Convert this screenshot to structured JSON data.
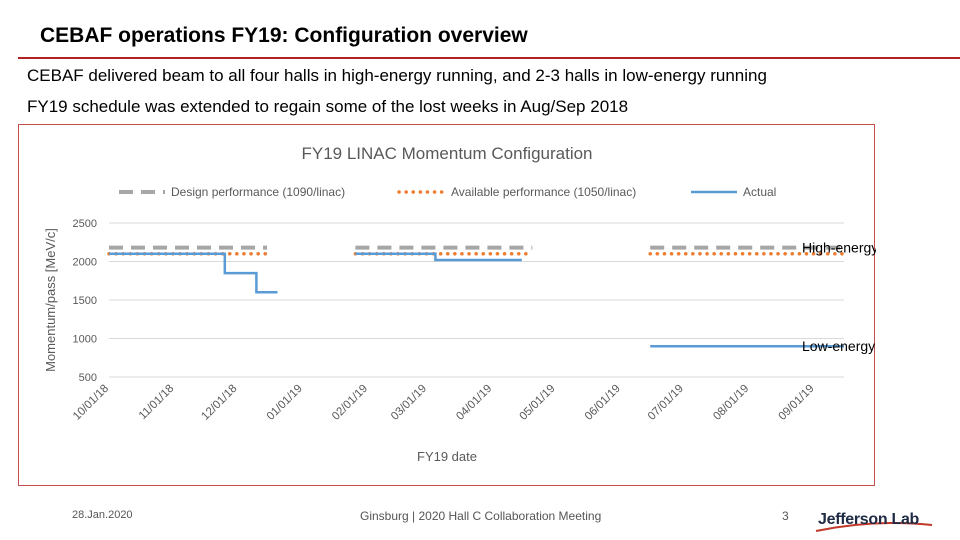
{
  "slide": {
    "title": "CEBAF operations FY19: Configuration overview",
    "bullets": [
      "CEBAF delivered beam to all four halls in high-energy running, and 2-3 halls in low-energy running",
      "FY19 schedule was extended to regain some of the lost weeks in Aug/Sep 2018"
    ],
    "footer": {
      "date": "28.Jan.2020",
      "center": "Ginsburg | 2020 Hall C Collaboration Meeting",
      "page": "3",
      "logo": "Jefferson Lab"
    }
  },
  "chart_data": {
    "type": "line",
    "title": "FY19 LINAC Momentum Configuration",
    "xlabel": "FY19 date",
    "ylabel": "Momentum/pass [MeV/c]",
    "ylim": [
      500,
      2500
    ],
    "yticks": [
      500,
      1000,
      1500,
      2000,
      2500
    ],
    "xlim": [
      "2018-10-01",
      "2019-09-15"
    ],
    "xticks": [
      "10/01/18",
      "11/01/18",
      "12/01/18",
      "01/01/19",
      "02/01/19",
      "03/01/19",
      "04/01/19",
      "05/01/19",
      "06/01/19",
      "07/01/19",
      "08/01/19",
      "09/01/19"
    ],
    "xtick_dates": [
      "2018-10-01",
      "2018-11-01",
      "2018-12-01",
      "2019-01-01",
      "2019-02-01",
      "2019-03-01",
      "2019-04-01",
      "2019-05-01",
      "2019-06-01",
      "2019-07-01",
      "2019-08-01",
      "2019-09-01"
    ],
    "grid": "horizontal",
    "legend_position": "top",
    "series": [
      {
        "name": "Design performance (1090/linac)",
        "style": "dashed",
        "color": "#a6a6a6",
        "segments": [
          [
            [
              "2018-10-01",
              2180
            ],
            [
              "2018-12-15",
              2180
            ]
          ],
          [
            [
              "2019-01-26",
              2180
            ],
            [
              "2019-04-20",
              2180
            ]
          ],
          [
            [
              "2019-06-15",
              2180
            ],
            [
              "2019-09-15",
              2180
            ]
          ]
        ]
      },
      {
        "name": "Available performance (1050/linac)",
        "style": "dotted",
        "color": "#ed7d31",
        "segments": [
          [
            [
              "2018-10-01",
              2100
            ],
            [
              "2018-12-15",
              2100
            ]
          ],
          [
            [
              "2019-01-26",
              2100
            ],
            [
              "2019-04-20",
              2100
            ]
          ],
          [
            [
              "2019-06-15",
              2100
            ],
            [
              "2019-09-15",
              2100
            ]
          ]
        ]
      },
      {
        "name": "Actual",
        "style": "solid",
        "color": "#5b9bd5",
        "segments": [
          [
            [
              "2018-10-01",
              2100
            ],
            [
              "2018-11-25",
              2100
            ],
            [
              "2018-11-25",
              1850
            ],
            [
              "2018-12-10",
              1850
            ],
            [
              "2018-12-10",
              1600
            ],
            [
              "2018-12-20",
              1600
            ]
          ],
          [
            [
              "2019-01-26",
              2100
            ],
            [
              "2019-03-05",
              2100
            ],
            [
              "2019-03-05",
              2020
            ],
            [
              "2019-04-15",
              2020
            ]
          ],
          [
            [
              "2019-06-15",
              900
            ],
            [
              "2019-09-15",
              900
            ]
          ]
        ]
      }
    ],
    "annotations": [
      {
        "text": "High-energy running",
        "at_y": 2180
      },
      {
        "text": "Low-energy running",
        "at_y": 900
      }
    ]
  }
}
